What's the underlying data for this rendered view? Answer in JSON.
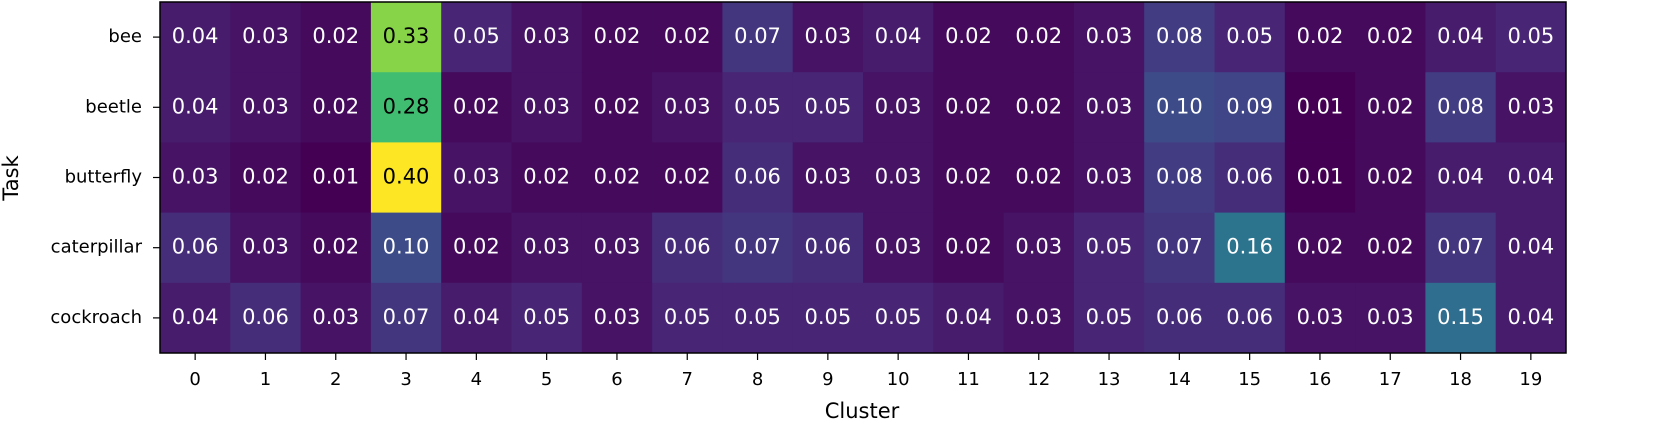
{
  "chart_data": {
    "type": "heatmap",
    "xlabel": "Cluster",
    "ylabel": "Task",
    "colormap": "viridis",
    "categories": [
      "0",
      "1",
      "2",
      "3",
      "4",
      "5",
      "6",
      "7",
      "8",
      "9",
      "10",
      "11",
      "12",
      "13",
      "14",
      "15",
      "16",
      "17",
      "18",
      "19"
    ],
    "rows": [
      "bee",
      "beetle",
      "butterfly",
      "caterpillar",
      "cockroach"
    ],
    "values": [
      [
        0.04,
        0.03,
        0.02,
        0.33,
        0.05,
        0.03,
        0.02,
        0.02,
        0.07,
        0.03,
        0.04,
        0.02,
        0.02,
        0.03,
        0.08,
        0.05,
        0.02,
        0.02,
        0.04,
        0.05
      ],
      [
        0.04,
        0.03,
        0.02,
        0.28,
        0.02,
        0.03,
        0.02,
        0.03,
        0.05,
        0.05,
        0.03,
        0.02,
        0.02,
        0.03,
        0.1,
        0.09,
        0.01,
        0.02,
        0.08,
        0.03
      ],
      [
        0.03,
        0.02,
        0.01,
        0.4,
        0.03,
        0.02,
        0.02,
        0.02,
        0.06,
        0.03,
        0.03,
        0.02,
        0.02,
        0.03,
        0.08,
        0.06,
        0.01,
        0.02,
        0.04,
        0.04
      ],
      [
        0.06,
        0.03,
        0.02,
        0.1,
        0.02,
        0.03,
        0.03,
        0.06,
        0.07,
        0.06,
        0.03,
        0.02,
        0.03,
        0.05,
        0.07,
        0.16,
        0.02,
        0.02,
        0.07,
        0.04
      ],
      [
        0.04,
        0.06,
        0.03,
        0.07,
        0.04,
        0.05,
        0.03,
        0.05,
        0.05,
        0.05,
        0.05,
        0.04,
        0.03,
        0.05,
        0.06,
        0.06,
        0.03,
        0.03,
        0.15,
        0.04
      ]
    ],
    "value_labels": [
      [
        "0.04",
        "0.03",
        "0.02",
        "0.33",
        "0.05",
        "0.03",
        "0.02",
        "0.02",
        "0.07",
        "0.03",
        "0.04",
        "0.02",
        "0.02",
        "0.03",
        "0.08",
        "0.05",
        "0.02",
        "0.02",
        "0.04",
        "0.05"
      ],
      [
        "0.04",
        "0.03",
        "0.02",
        "0.28",
        "0.02",
        "0.03",
        "0.02",
        "0.03",
        "0.05",
        "0.05",
        "0.03",
        "0.02",
        "0.02",
        "0.03",
        "0.10",
        "0.09",
        "0.01",
        "0.02",
        "0.08",
        "0.03"
      ],
      [
        "0.03",
        "0.02",
        "0.01",
        "0.40",
        "0.03",
        "0.02",
        "0.02",
        "0.02",
        "0.06",
        "0.03",
        "0.03",
        "0.02",
        "0.02",
        "0.03",
        "0.08",
        "0.06",
        "0.01",
        "0.02",
        "0.04",
        "0.04"
      ],
      [
        "0.06",
        "0.03",
        "0.02",
        "0.10",
        "0.02",
        "0.03",
        "0.03",
        "0.06",
        "0.07",
        "0.06",
        "0.03",
        "0.02",
        "0.03",
        "0.05",
        "0.07",
        "0.16",
        "0.02",
        "0.02",
        "0.07",
        "0.04"
      ],
      [
        "0.04",
        "0.06",
        "0.03",
        "0.07",
        "0.04",
        "0.05",
        "0.03",
        "0.05",
        "0.05",
        "0.05",
        "0.05",
        "0.04",
        "0.03",
        "0.05",
        "0.06",
        "0.06",
        "0.03",
        "0.03",
        "0.15",
        "0.04"
      ]
    ]
  }
}
